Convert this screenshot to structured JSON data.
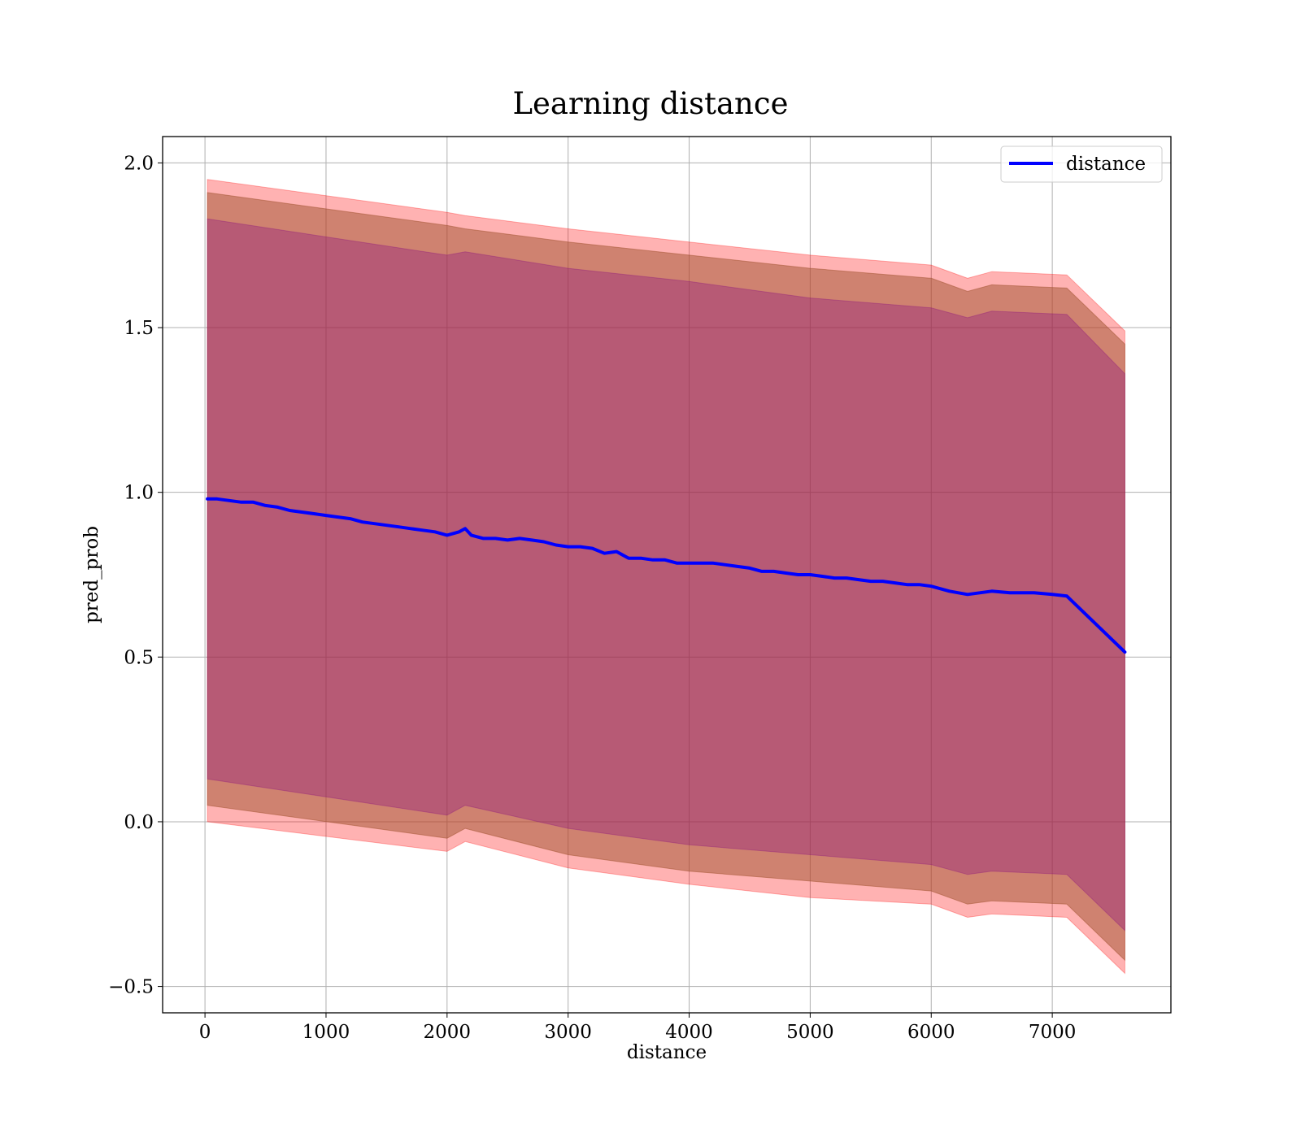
{
  "chart_data": {
    "type": "line",
    "title": "Learning distance",
    "xlabel": "distance",
    "ylabel": "pred_prob",
    "xlim": [
      -350,
      7980
    ],
    "ylim": [
      -0.58,
      2.08
    ],
    "xticks": [
      0,
      1000,
      2000,
      3000,
      4000,
      5000,
      6000,
      7000
    ],
    "yticks": [
      -0.5,
      0.0,
      0.5,
      1.0,
      1.5,
      2.0
    ],
    "xtick_labels": [
      "0",
      "1000",
      "2000",
      "3000",
      "4000",
      "5000",
      "6000",
      "7000"
    ],
    "ytick_labels": [
      "−0.5",
      "0.0",
      "0.5",
      "1.0",
      "1.5",
      "2.0"
    ],
    "grid": true,
    "legend_position": "top-right",
    "series": [
      {
        "name": "distance",
        "color": "#0000ff",
        "x": [
          20,
          100,
          200,
          300,
          400,
          500,
          600,
          700,
          800,
          900,
          1000,
          1100,
          1200,
          1300,
          1400,
          1500,
          1600,
          1700,
          1800,
          1900,
          2000,
          2100,
          2150,
          2200,
          2300,
          2400,
          2500,
          2600,
          2700,
          2800,
          2900,
          3000,
          3100,
          3200,
          3300,
          3400,
          3500,
          3600,
          3700,
          3800,
          3900,
          4000,
          4100,
          4200,
          4300,
          4400,
          4500,
          4600,
          4700,
          4800,
          4900,
          5000,
          5100,
          5200,
          5300,
          5400,
          5500,
          5600,
          5700,
          5800,
          5900,
          6000,
          6150,
          6300,
          6500,
          6650,
          6850,
          7000,
          7120,
          7600
        ],
        "y": [
          0.98,
          0.98,
          0.975,
          0.97,
          0.97,
          0.96,
          0.955,
          0.945,
          0.94,
          0.935,
          0.93,
          0.925,
          0.92,
          0.91,
          0.905,
          0.9,
          0.895,
          0.89,
          0.885,
          0.88,
          0.87,
          0.88,
          0.89,
          0.87,
          0.86,
          0.86,
          0.855,
          0.86,
          0.855,
          0.85,
          0.84,
          0.835,
          0.835,
          0.83,
          0.815,
          0.82,
          0.8,
          0.8,
          0.795,
          0.795,
          0.785,
          0.785,
          0.785,
          0.785,
          0.78,
          0.775,
          0.77,
          0.76,
          0.76,
          0.755,
          0.75,
          0.75,
          0.745,
          0.74,
          0.74,
          0.735,
          0.73,
          0.73,
          0.725,
          0.72,
          0.72,
          0.715,
          0.7,
          0.69,
          0.7,
          0.695,
          0.695,
          0.69,
          0.685,
          0.515
        ]
      }
    ],
    "bands": [
      {
        "color": "#ff0000",
        "opacity": 0.3,
        "x": [
          20,
          2000,
          2150,
          3000,
          4000,
          5000,
          6000,
          6300,
          6500,
          7120,
          7600
        ],
        "upper": [
          1.95,
          1.85,
          1.84,
          1.8,
          1.76,
          1.72,
          1.69,
          1.65,
          1.67,
          1.66,
          1.49
        ],
        "lower": [
          0.0,
          -0.09,
          -0.06,
          -0.14,
          -0.19,
          -0.23,
          -0.25,
          -0.29,
          -0.28,
          -0.29,
          -0.46
        ]
      },
      {
        "color": "#a0522d",
        "opacity": 0.5,
        "x": [
          20,
          2000,
          2150,
          3000,
          4000,
          5000,
          6000,
          6300,
          6500,
          7120,
          7600
        ],
        "upper": [
          1.91,
          1.81,
          1.8,
          1.76,
          1.72,
          1.68,
          1.65,
          1.61,
          1.63,
          1.62,
          1.45
        ],
        "lower": [
          0.05,
          -0.05,
          -0.02,
          -0.1,
          -0.15,
          -0.18,
          -0.21,
          -0.25,
          -0.24,
          -0.25,
          -0.42
        ]
      },
      {
        "color": "#800080",
        "opacity": 0.3,
        "x": [
          20,
          2000,
          2150,
          3000,
          4000,
          5000,
          6000,
          6300,
          6500,
          7120,
          7600
        ],
        "upper": [
          1.83,
          1.72,
          1.73,
          1.68,
          1.64,
          1.59,
          1.56,
          1.53,
          1.55,
          1.54,
          1.36
        ],
        "lower": [
          0.13,
          0.02,
          0.05,
          -0.02,
          -0.07,
          -0.1,
          -0.13,
          -0.16,
          -0.15,
          -0.16,
          -0.33
        ]
      }
    ]
  }
}
